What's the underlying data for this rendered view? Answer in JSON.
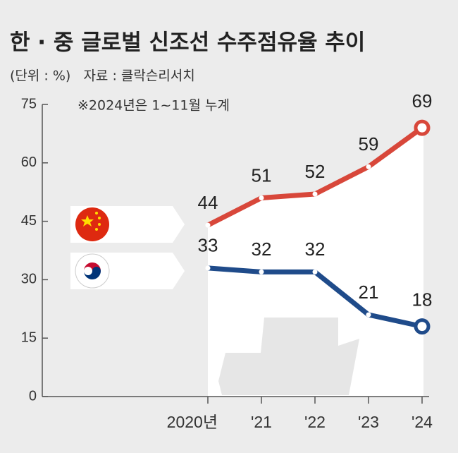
{
  "chart_data": {
    "type": "line",
    "title": "한 · 중 글로벌 신조선 수주점유율 추이",
    "subtitle": "(단위 : %)   자료 : 클락슨리서치",
    "annotation": "※2024년은 1~11월 누계",
    "categories": [
      "2020년",
      "'21",
      "'22",
      "'23",
      "'24"
    ],
    "series": [
      {
        "name": "중국",
        "color": "#d8473a",
        "values": [
          44,
          51,
          52,
          59,
          69
        ]
      },
      {
        "name": "한국",
        "color": "#1f4b8a",
        "values": [
          33,
          32,
          32,
          21,
          18
        ]
      }
    ],
    "ylim": [
      0,
      75
    ],
    "yticks": [
      0,
      15,
      30,
      45,
      60,
      75
    ]
  }
}
